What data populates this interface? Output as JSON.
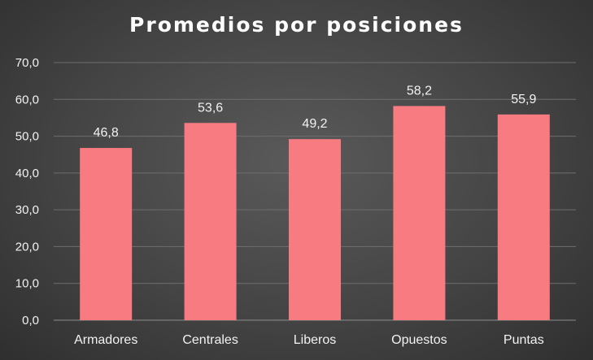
{
  "chart_data": {
    "type": "bar",
    "title": "Promedios por posiciones",
    "categories": [
      "Armadores",
      "Centrales",
      "Liberos",
      "Opuestos",
      "Puntas"
    ],
    "values": [
      46.8,
      53.6,
      49.2,
      58.2,
      55.9
    ],
    "data_labels": [
      "46,8",
      "53,6",
      "49,2",
      "58,2",
      "55,9"
    ],
    "ylim": [
      0,
      70
    ],
    "yticks": [
      0,
      10,
      20,
      30,
      40,
      50,
      60,
      70
    ],
    "ytick_labels": [
      "0,0",
      "10,0",
      "20,0",
      "30,0",
      "40,0",
      "50,0",
      "60,0",
      "70,0"
    ],
    "xlabel": "",
    "ylabel": "",
    "grid": true,
    "legend": "none",
    "colors": {
      "bar": "#f77b81",
      "background": "#464646",
      "text": "#f2f2f2",
      "grid": "#6e6e6e"
    }
  }
}
